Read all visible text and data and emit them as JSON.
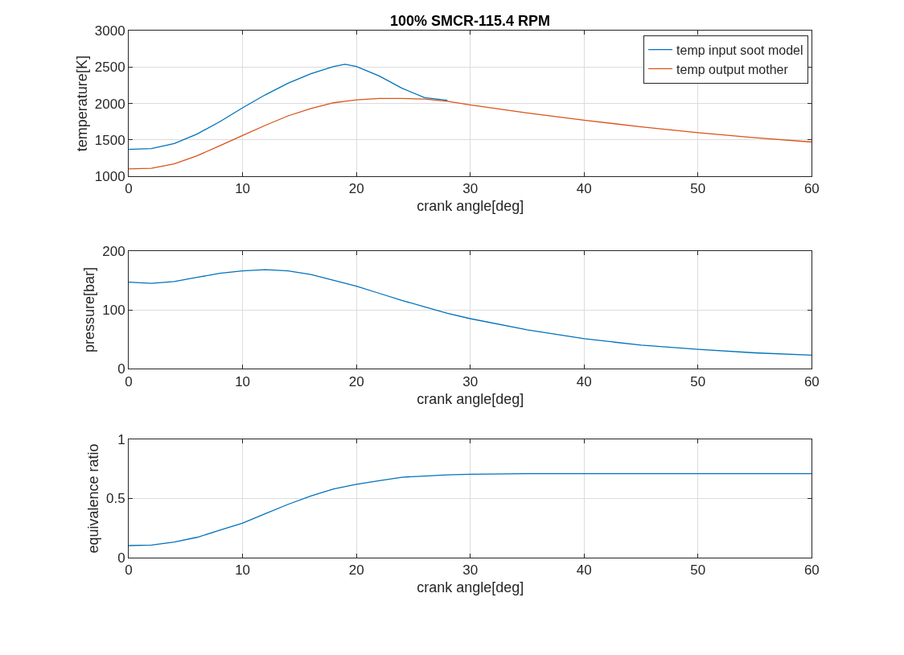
{
  "chart_data": [
    {
      "type": "line",
      "title": "100% SMCR-115.4 RPM",
      "xlabel": "crank angle[deg]",
      "ylabel": "temperature[K]",
      "x": [
        0,
        2,
        4,
        6,
        8,
        10,
        12,
        14,
        16,
        18,
        19,
        20,
        22,
        24,
        26,
        28,
        30,
        35,
        40,
        45,
        50,
        55,
        60
      ],
      "series": [
        {
          "name": "temp input soot model",
          "color": "#0072bd",
          "values": [
            1370,
            1380,
            1450,
            1580,
            1750,
            1940,
            2120,
            2280,
            2410,
            2510,
            2540,
            2510,
            2380,
            2210,
            2080,
            2045,
            null,
            null,
            null,
            null,
            null,
            null,
            null
          ]
        },
        {
          "name": "temp output mother",
          "color": "#d95319",
          "values": [
            1100,
            1110,
            1170,
            1280,
            1420,
            1560,
            1700,
            1830,
            1930,
            2010,
            2030,
            2050,
            2070,
            2070,
            2060,
            2030,
            1980,
            1870,
            1770,
            1680,
            1600,
            1530,
            1470
          ]
        }
      ],
      "xlim": [
        0,
        60
      ],
      "xticks": [
        0,
        10,
        20,
        30,
        40,
        50,
        60
      ],
      "ylim": [
        1000,
        3000
      ],
      "yticks": [
        1000,
        1500,
        2000,
        2500,
        3000
      ],
      "grid": true,
      "legend": "top right"
    },
    {
      "type": "line",
      "xlabel": "crank angle[deg]",
      "ylabel": "pressure[bar]",
      "x": [
        0,
        2,
        4,
        6,
        8,
        10,
        12,
        14,
        16,
        18,
        20,
        22,
        24,
        26,
        28,
        30,
        35,
        40,
        45,
        50,
        55,
        60
      ],
      "series": [
        {
          "color": "#0072bd",
          "values": [
            147,
            145,
            148,
            155,
            162,
            166,
            168,
            166,
            160,
            150,
            140,
            128,
            116,
            105,
            94,
            85,
            66,
            51,
            40,
            33,
            27,
            23
          ]
        }
      ],
      "xlim": [
        0,
        60
      ],
      "xticks": [
        0,
        10,
        20,
        30,
        40,
        50,
        60
      ],
      "ylim": [
        0,
        200
      ],
      "yticks": [
        0,
        100,
        200
      ],
      "grid": true
    },
    {
      "type": "line",
      "xlabel": "crank angle[deg]",
      "ylabel": "equivalence ratio",
      "x": [
        0,
        2,
        4,
        6,
        8,
        10,
        12,
        14,
        16,
        18,
        20,
        22,
        24,
        26,
        28,
        30,
        35,
        40,
        50,
        60
      ],
      "series": [
        {
          "color": "#0072bd",
          "values": [
            0.1,
            0.105,
            0.13,
            0.17,
            0.23,
            0.29,
            0.37,
            0.45,
            0.52,
            0.58,
            0.62,
            0.65,
            0.68,
            0.69,
            0.7,
            0.705,
            0.71,
            0.71,
            0.71,
            0.71
          ]
        }
      ],
      "xlim": [
        0,
        60
      ],
      "xticks": [
        0,
        10,
        20,
        30,
        40,
        50,
        60
      ],
      "ylim": [
        0,
        1
      ],
      "yticks": [
        0,
        0.5,
        1
      ],
      "grid": true
    }
  ]
}
